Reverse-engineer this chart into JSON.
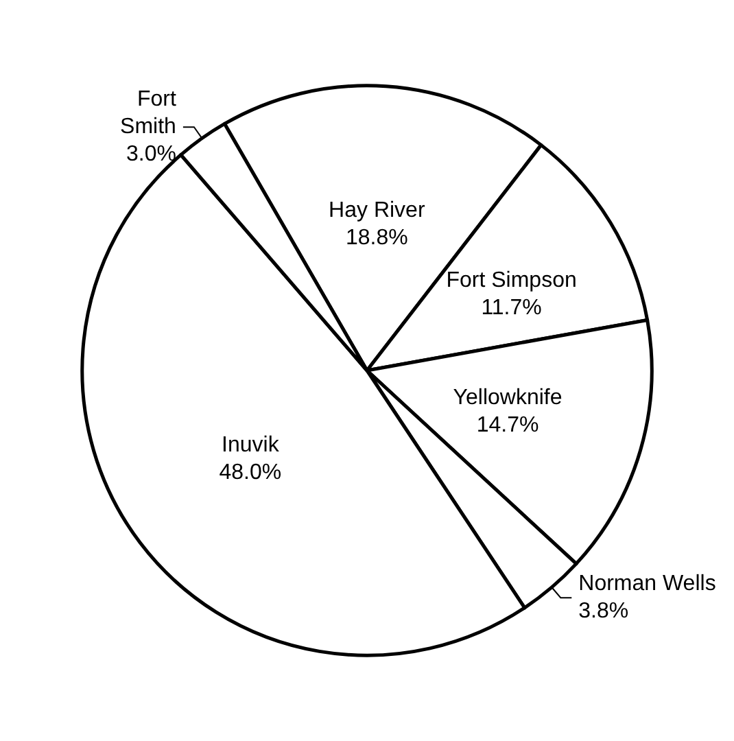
{
  "chart_data": {
    "type": "pie",
    "categories": [
      "Hay River",
      "Fort Simpson",
      "Yellowknife",
      "Norman Wells",
      "Inuvik",
      "Fort Smith"
    ],
    "values": [
      18.8,
      11.7,
      14.7,
      3.8,
      48.0,
      3.0
    ],
    "value_labels": [
      "18.8%",
      "11.7%",
      "14.7%",
      "3.8%",
      "48.0%",
      "3.0%"
    ],
    "colors": [
      "#ffffff",
      "#ffffff",
      "#ffffff",
      "#ffffff",
      "#ffffff",
      "#ffffff"
    ],
    "legend": false
  }
}
